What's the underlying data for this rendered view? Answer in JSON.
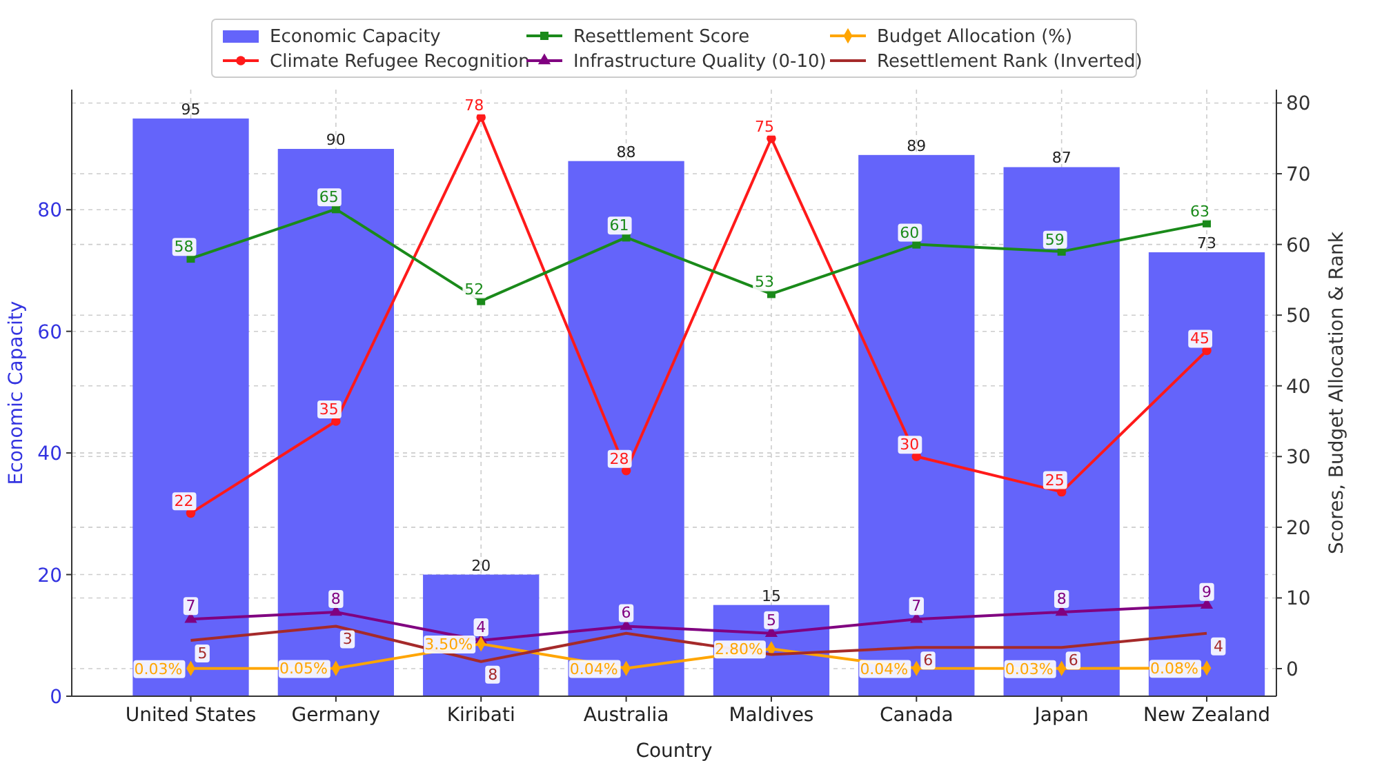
{
  "chart_data": {
    "type": "bar",
    "xlabel": "Country",
    "ylabel": "Economic Capacity",
    "y2label": "Scores, Budget Allocation & Rank",
    "categories": [
      "United States",
      "Germany",
      "Kiribati",
      "Australia",
      "Maldives",
      "Canada",
      "Japan",
      "New Zealand"
    ],
    "ylim": [
      0,
      99.75
    ],
    "yticks": [
      0,
      20,
      40,
      60,
      80
    ],
    "y2lim": [
      -3.9,
      81.9
    ],
    "y2ticks": [
      0,
      10,
      20,
      30,
      40,
      50,
      60,
      70,
      80
    ],
    "grid": true,
    "legend": "top",
    "series": [
      {
        "name": "Economic Capacity",
        "type": "bar",
        "color": "#6464fa",
        "values": [
          95,
          90,
          20,
          88,
          15,
          89,
          87,
          73
        ],
        "value_labels": [
          "95",
          "90",
          "20",
          "88",
          "15",
          "89",
          "87",
          "73"
        ]
      },
      {
        "name": "Climate Refugee Recognition",
        "type": "line",
        "axis": "y2",
        "color": "#ff1a1a",
        "marker": "circle",
        "values": [
          22,
          35,
          78,
          28,
          75,
          30,
          25,
          45
        ],
        "value_labels": [
          "22",
          "35",
          "78",
          "28",
          "75",
          "30",
          "25",
          "45"
        ]
      },
      {
        "name": "Resettlement Score",
        "type": "line",
        "axis": "y2",
        "color": "#1a8a1a",
        "marker": "square",
        "values": [
          58,
          65,
          52,
          61,
          53,
          60,
          59,
          63
        ],
        "value_labels": [
          "58",
          "65",
          "52",
          "61",
          "53",
          "60",
          "59",
          "63"
        ]
      },
      {
        "name": "Infrastructure Quality (0-10)",
        "type": "line",
        "axis": "y2",
        "color": "#800080",
        "marker": "triangle",
        "values": [
          7,
          8,
          4,
          6,
          5,
          7,
          8,
          9
        ],
        "value_labels": [
          "7",
          "8",
          "4",
          "6",
          "5",
          "7",
          "8",
          "9"
        ]
      },
      {
        "name": "Budget Allocation (%)",
        "type": "line",
        "axis": "y2",
        "color": "#ffa500",
        "marker": "diamond",
        "values": [
          0.03,
          0.05,
          3.5,
          0.04,
          2.8,
          0.04,
          0.03,
          0.08
        ],
        "value_labels": [
          "0.03%",
          "0.05%",
          "3.50%",
          "0.04%",
          "2.80%",
          "0.04%",
          "0.03%",
          "0.08%"
        ]
      },
      {
        "name": "Resettlement Rank (Inverted)",
        "type": "line",
        "axis": "y2",
        "color": "#a52a2a",
        "marker": "none",
        "values": [
          4,
          6,
          1,
          5,
          2,
          3,
          3,
          5
        ]
      }
    ],
    "annotations": [
      {
        "text": "5",
        "x": "United States",
        "y": 4
      },
      {
        "text": "3",
        "x": "Germany",
        "y": 6
      },
      {
        "text": "8",
        "x": "Kiribati",
        "y": 1
      },
      {
        "text": "6",
        "x": "Canada",
        "y": 3
      },
      {
        "text": "6",
        "x": "Japan",
        "y": 3
      },
      {
        "text": "4",
        "x": "New Zealand",
        "y": 5
      }
    ]
  }
}
